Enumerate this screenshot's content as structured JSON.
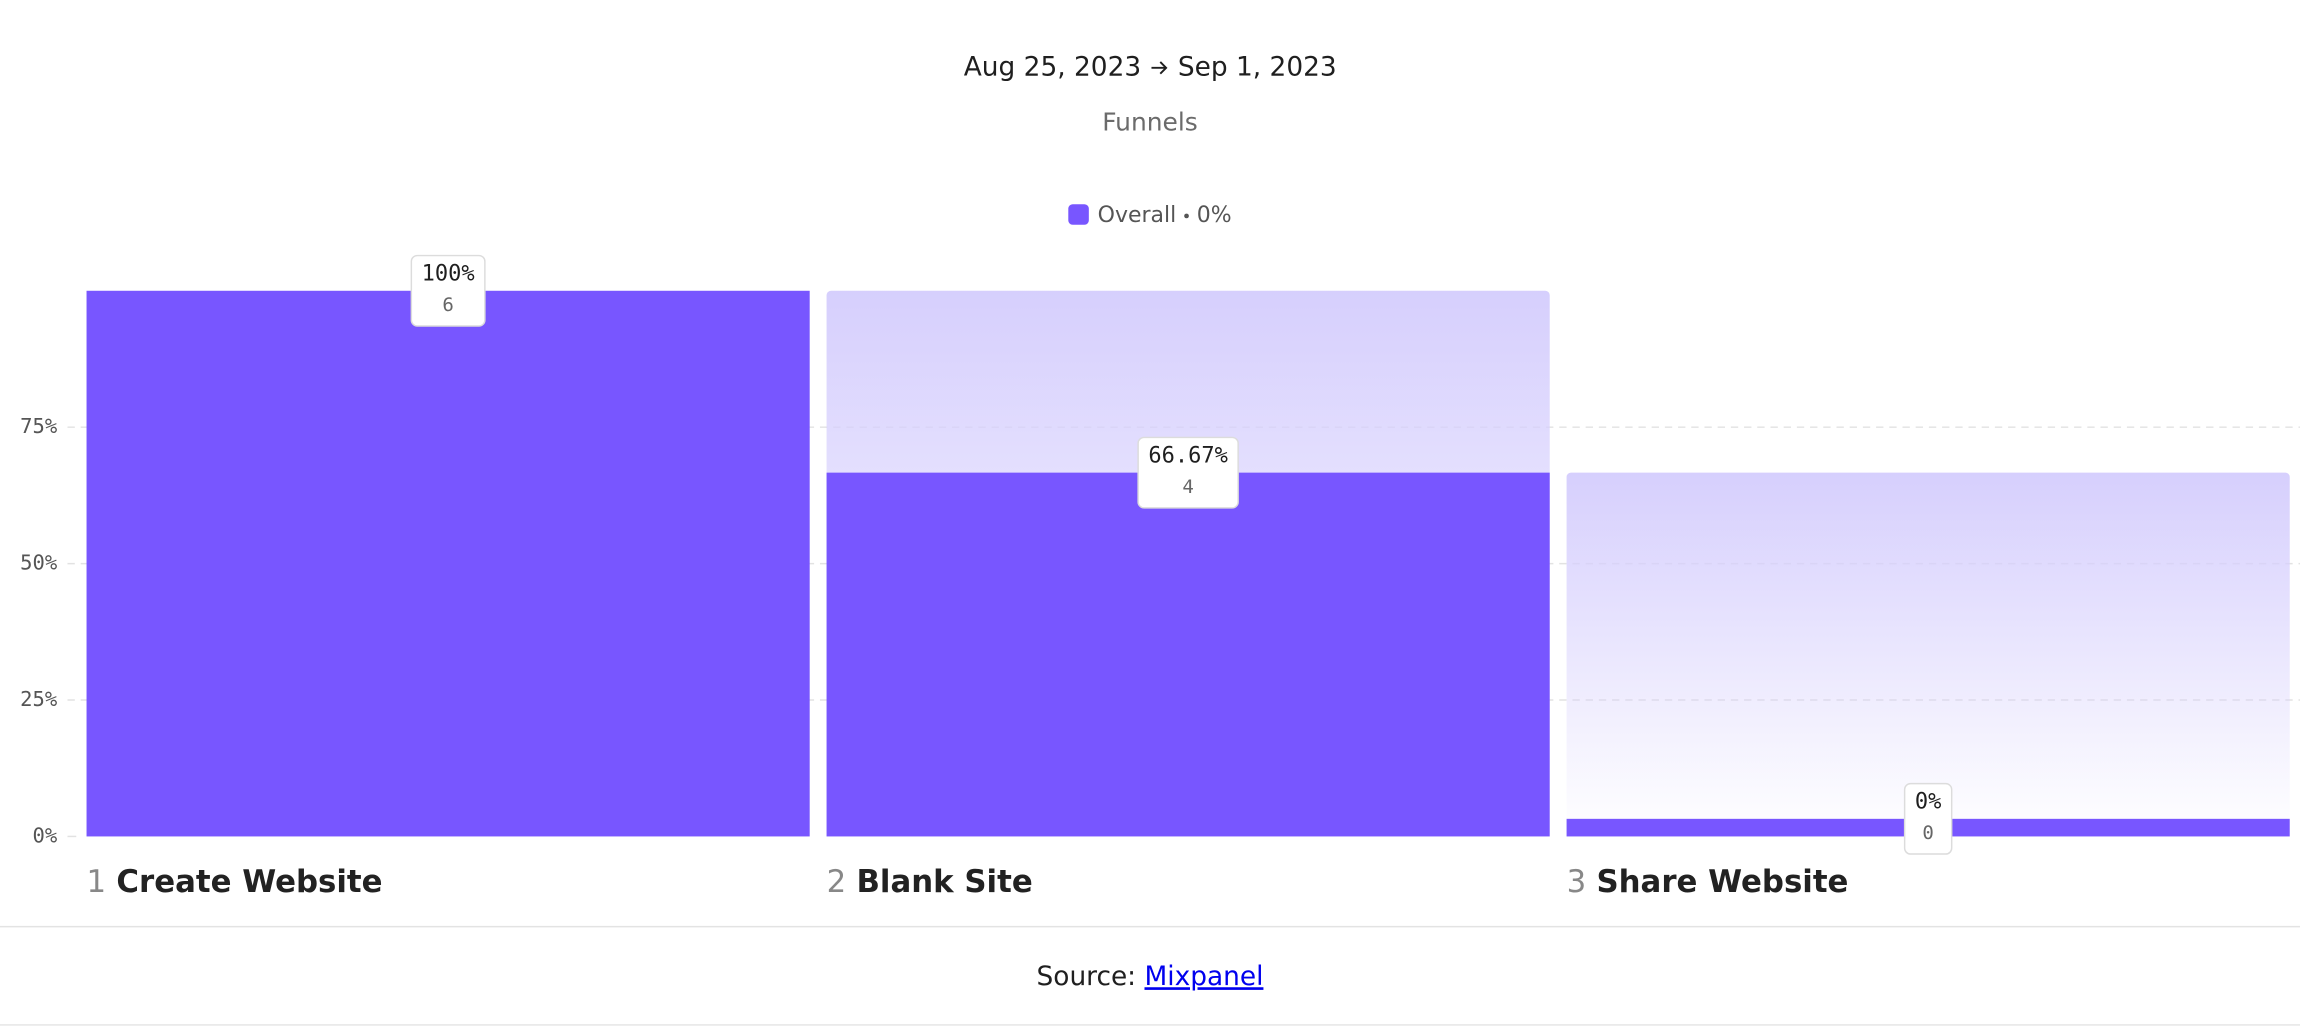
{
  "date_range": {
    "start": "Aug 25, 2023",
    "end": "Sep 1, 2023"
  },
  "chart_data": {
    "type": "funnel",
    "title": "Funnels",
    "categories": [
      "Create Website",
      "Blank Site",
      "Share Website"
    ],
    "step_numbers": [
      1,
      2,
      3
    ],
    "series": [
      {
        "name": "Overall",
        "color": "#7856ff",
        "values": [
          100,
          66.67,
          0
        ],
        "value_labels": [
          "100%",
          "66.67%",
          "0%"
        ],
        "counts": [
          6,
          4,
          0
        ]
      }
    ],
    "overall_conversion": 0,
    "overall_conversion_label": "0%",
    "ylim": [
      0,
      100
    ],
    "yticks": [
      {
        "value": 0,
        "label": "0%"
      },
      {
        "value": 25,
        "label": "25%"
      },
      {
        "value": 50,
        "label": "50%"
      },
      {
        "value": 75,
        "label": "75%"
      }
    ],
    "grid": true
  },
  "source": {
    "label": "Source:",
    "link": "Mixpanel"
  }
}
